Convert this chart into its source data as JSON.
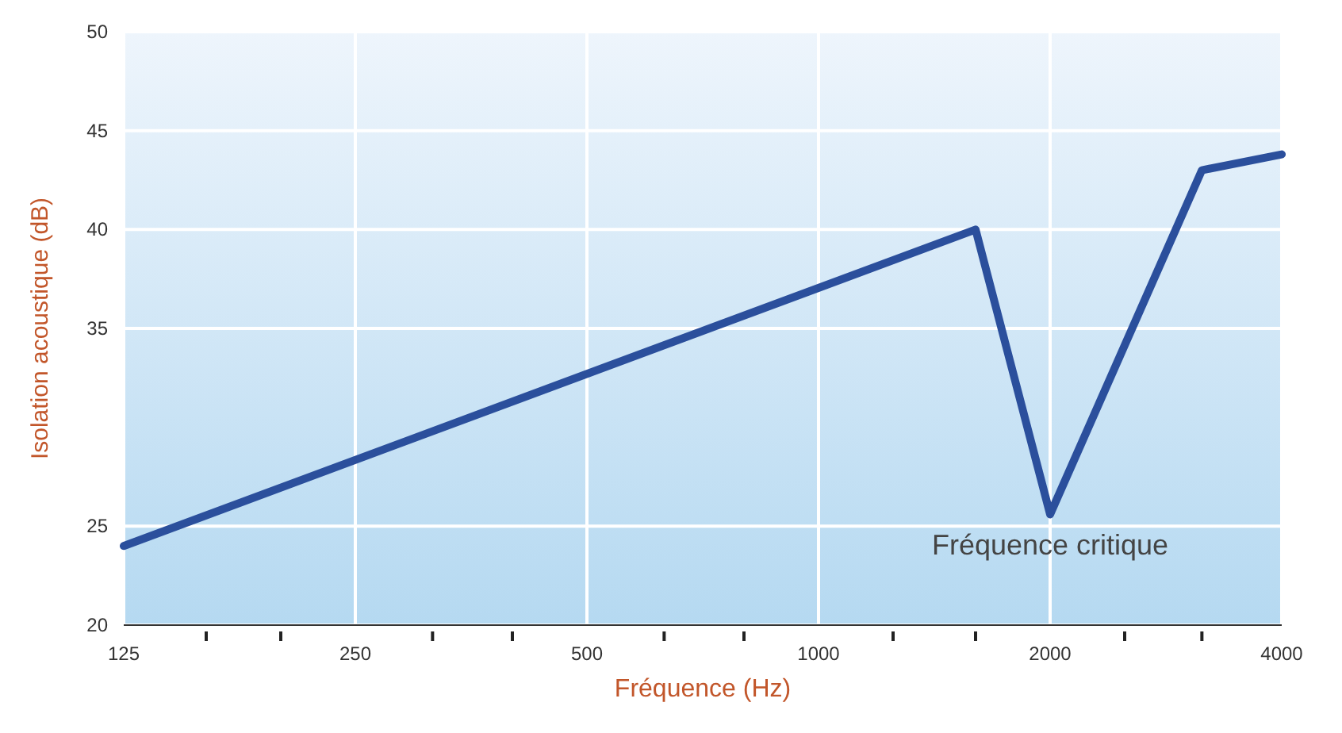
{
  "chart_data": {
    "type": "line",
    "xlabel": "Fréquence (Hz)",
    "ylabel": "Isolation acoustique (dB)",
    "x": [
      125,
      1600,
      2000,
      3150,
      4000
    ],
    "series": [
      {
        "color": "#2b4f9c",
        "values": [
          24,
          40,
          25.6,
          43,
          43.8
        ]
      }
    ],
    "log": "x",
    "xlim": [
      125,
      4000
    ],
    "ylim": [
      20,
      50
    ],
    "xticks": [
      125,
      {
        "value": 160,
        "label": null
      },
      {
        "value": 200,
        "label": null
      },
      250,
      {
        "value": 315,
        "label": null
      },
      {
        "value": 400,
        "label": null
      },
      500,
      {
        "value": 630,
        "label": null
      },
      {
        "value": 800,
        "label": null
      },
      1000,
      {
        "value": 1250,
        "label": null
      },
      {
        "value": 1600,
        "label": null
      },
      2000,
      {
        "value": 2500,
        "label": null
      },
      {
        "value": 3150,
        "label": null
      },
      4000
    ],
    "yticks": [
      20,
      25,
      35,
      40,
      45,
      50
    ],
    "grid": true,
    "marker": "none",
    "line_style": "solid",
    "annotations": [
      {
        "text": "Fréquence critique",
        "x": 2000,
        "y": 25
      }
    ]
  }
}
